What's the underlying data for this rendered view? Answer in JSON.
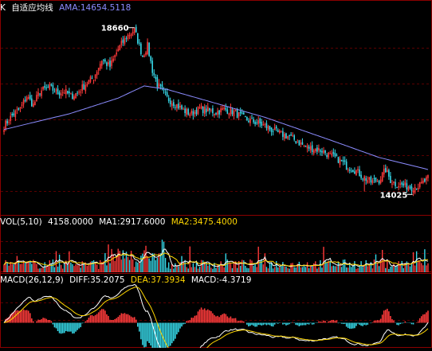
{
  "colors": {
    "background": "#000000",
    "frame": "#8b0000",
    "grid": "#5a0000",
    "up": "#ff3b3b",
    "down": "#36d6e6",
    "ama": "#8c8cff",
    "ma1": "#ffffff",
    "ma2": "#ffd700",
    "diff": "#ffffff",
    "dea": "#ffd700",
    "label_white": "#ffffff"
  },
  "price_panel": {
    "symbol": "K",
    "indicator_name": "自适应均线",
    "ama_label": "AMA:14654.5118",
    "high_label": "18660",
    "low_label": "14025"
  },
  "volume_panel": {
    "params": "VOL(5,10)",
    "vol_value": "4158.0000",
    "ma1_label": "MA1:2917.6000",
    "ma2_label": "MA2:3475.4000"
  },
  "macd_panel": {
    "params": "MACD(26,12,9)",
    "diff_label": "DIFF:35.2075",
    "dea_label": "DEA:37.3934",
    "macd_label": "MACD:-4.3719"
  },
  "chart_data": {
    "type": "line",
    "description_series": "candlestick price with AMA line, volume bars, MACD",
    "price_range": [
      13400,
      19100
    ],
    "price_keypoints": {
      "x": [
        0,
        5,
        10,
        14,
        18,
        22,
        28,
        33,
        37,
        41,
        45,
        50,
        55,
        60,
        65,
        70,
        75,
        80,
        85,
        88,
        91,
        94,
        100,
        106,
        110,
        115,
        120,
        125,
        130,
        135,
        140,
        148,
        155,
        160,
        168,
        175,
        180,
        185,
        190,
        195,
        200,
        205,
        210,
        215,
        220,
        225,
        230,
        234,
        237,
        240,
        245,
        250,
        255,
        260
      ],
      "close": [
        15900,
        16200,
        16400,
        16750,
        16500,
        16900,
        17000,
        16850,
        16900,
        16750,
        16850,
        17100,
        17300,
        17800,
        17600,
        18100,
        18450,
        18660,
        17900,
        18200,
        17500,
        17100,
        16700,
        16500,
        16350,
        16250,
        16400,
        16350,
        16300,
        16380,
        16320,
        16100,
        16000,
        15900,
        15700,
        15600,
        15450,
        15300,
        15250,
        15200,
        15050,
        14950,
        14750,
        14650,
        14450,
        14300,
        14350,
        14650,
        14350,
        14250,
        14200,
        14150,
        14200,
        14400
      ]
    },
    "ama_keypoints": {
      "x": [
        0,
        40,
        70,
        86,
        100,
        130,
        160,
        200,
        230,
        260
      ],
      "y": [
        15800,
        16250,
        16700,
        17050,
        16950,
        16550,
        16150,
        15500,
        15000,
        14655
      ]
    },
    "volume": {
      "last": 4158.0,
      "ma1": 2917.6,
      "ma2": 3475.4,
      "range": [
        0,
        20000
      ]
    },
    "macd": {
      "diff": 35.2075,
      "dea": 37.3934,
      "macd": -4.3719,
      "range": [
        -200,
        320
      ]
    }
  }
}
